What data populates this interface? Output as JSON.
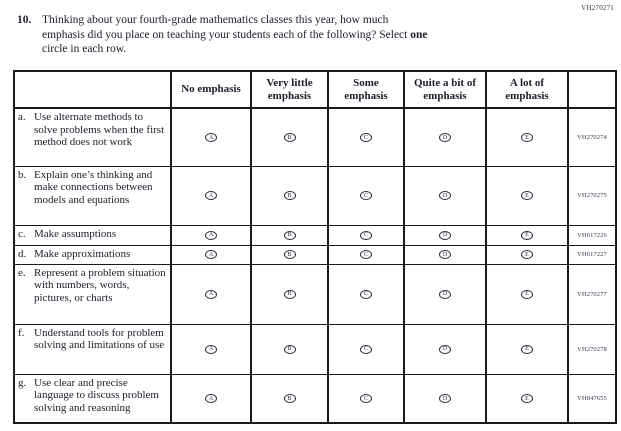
{
  "page": {
    "corner_code": "VH270271"
  },
  "question": {
    "number": "10.",
    "line1": "Thinking about your fourth-grade mathematics classes this year, how much",
    "line2": "emphasis did you place on teaching your students each of the following? Select",
    "line2_bold": "one",
    "line3": "circle in each row."
  },
  "table": {
    "column_headers": [
      "No emphasis",
      "Very little emphasis",
      "Some emphasis",
      "Quite a bit of emphasis",
      "A lot of emphasis"
    ],
    "bubble_letters": [
      "A",
      "B",
      "C",
      "D",
      "E"
    ],
    "rows": [
      {
        "letter": "a.",
        "text": "Use alternate methods to solve problems when the first method does not work",
        "code": "VH270274"
      },
      {
        "letter": "b.",
        "text": "Explain one’s thinking and make connections between models and equations",
        "code": "VH270275"
      },
      {
        "letter": "c.",
        "text": "Make assumptions",
        "code": "VH617226"
      },
      {
        "letter": "d.",
        "text": "Make approximations",
        "code": "VH617227"
      },
      {
        "letter": "e.",
        "text": "Represent a problem situation with numbers, words, pictures, or charts",
        "code": "VH270277"
      },
      {
        "letter": "f.",
        "text": "Understand tools for problem solving and limitations of use",
        "code": "VH270278"
      },
      {
        "letter": "g.",
        "text": "Use clear and precise language to discuss problem solving and reasoning",
        "code": "VH847655"
      }
    ]
  }
}
